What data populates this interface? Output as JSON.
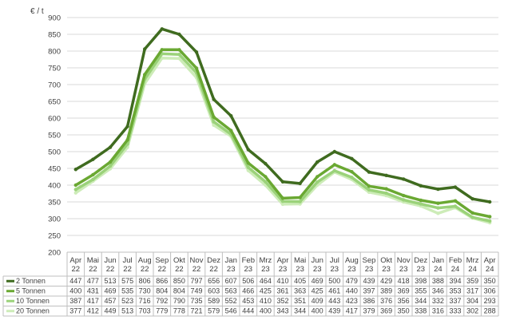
{
  "chart_data": {
    "type": "line",
    "y_unit": "€ / t",
    "ylim": [
      200,
      900
    ],
    "ytick_step": 50,
    "grid": "horizontal",
    "categories": [
      [
        "Apr",
        "22"
      ],
      [
        "Mai",
        "22"
      ],
      [
        "Jun",
        "22"
      ],
      [
        "Jul",
        "22"
      ],
      [
        "Aug",
        "22"
      ],
      [
        "Sep",
        "22"
      ],
      [
        "Okt",
        "22"
      ],
      [
        "Nov",
        "22"
      ],
      [
        "Dez",
        "22"
      ],
      [
        "Jan",
        "23"
      ],
      [
        "Feb",
        "23"
      ],
      [
        "Mrz",
        "23"
      ],
      [
        "Apr",
        "23"
      ],
      [
        "Mai",
        "23"
      ],
      [
        "Jun",
        "23"
      ],
      [
        "Jul",
        "23"
      ],
      [
        "Aug",
        "23"
      ],
      [
        "Sep",
        "23"
      ],
      [
        "Okt",
        "23"
      ],
      [
        "Nov",
        "23"
      ],
      [
        "Dez",
        "23"
      ],
      [
        "Jan",
        "24"
      ],
      [
        "Feb",
        "24"
      ],
      [
        "Mrz",
        "24"
      ],
      [
        "Apr",
        "24"
      ]
    ],
    "series": [
      {
        "name": "2 Tonnen",
        "color": "#3f6b1f",
        "width": 3.5,
        "values": [
          447,
          477,
          513,
          575,
          806,
          866,
          850,
          797,
          656,
          607,
          506,
          464,
          410,
          405,
          469,
          500,
          479,
          439,
          429,
          418,
          398,
          388,
          394,
          359,
          350
        ]
      },
      {
        "name": "5 Tonnen",
        "color": "#6aa832",
        "width": 3.5,
        "values": [
          400,
          431,
          469,
          535,
          730,
          804,
          804,
          749,
          603,
          563,
          466,
          425,
          361,
          363,
          425,
          461,
          440,
          397,
          389,
          369,
          355,
          346,
          353,
          317,
          306
        ]
      },
      {
        "name": "10 Tonnen",
        "color": "#9bd27a",
        "width": 3.5,
        "values": [
          387,
          417,
          457,
          523,
          716,
          792,
          790,
          735,
          589,
          552,
          453,
          410,
          352,
          351,
          409,
          443,
          423,
          386,
          376,
          356,
          344,
          332,
          337,
          304,
          293
        ]
      },
      {
        "name": "20 Tonnen",
        "color": "#cdecb8",
        "width": 3.5,
        "values": [
          377,
          412,
          449,
          513,
          703,
          779,
          778,
          721,
          579,
          546,
          444,
          400,
          343,
          344,
          400,
          439,
          417,
          379,
          369,
          350,
          338,
          316,
          333,
          302,
          288
        ]
      }
    ]
  }
}
